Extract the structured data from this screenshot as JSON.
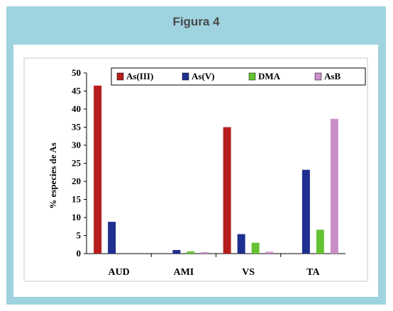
{
  "figure": {
    "title": "Figura 4"
  },
  "colors": {
    "frame": "#9ed3df",
    "series": [
      "#b51d1d",
      "#1f2f8f",
      "#64c232",
      "#c98fc9"
    ]
  },
  "chart_data": {
    "type": "bar",
    "title": "",
    "xlabel": "",
    "ylabel": "% especies de As",
    "ylim": [
      0,
      50
    ],
    "yticks": [
      0,
      5,
      10,
      15,
      20,
      25,
      30,
      35,
      40,
      45,
      50
    ],
    "categories": [
      "AUD",
      "AMI",
      "VS",
      "TA"
    ],
    "series": [
      {
        "name": "As(III)",
        "values": [
          46.5,
          0,
          35,
          0
        ]
      },
      {
        "name": "As(V)",
        "values": [
          8.8,
          1.0,
          5.4,
          23.2
        ]
      },
      {
        "name": "DMA",
        "values": [
          0,
          0.6,
          3.0,
          6.6
        ]
      },
      {
        "name": "AsB",
        "values": [
          0,
          0.4,
          0.5,
          37.3
        ]
      }
    ],
    "legend_position": "top",
    "grid": false
  }
}
